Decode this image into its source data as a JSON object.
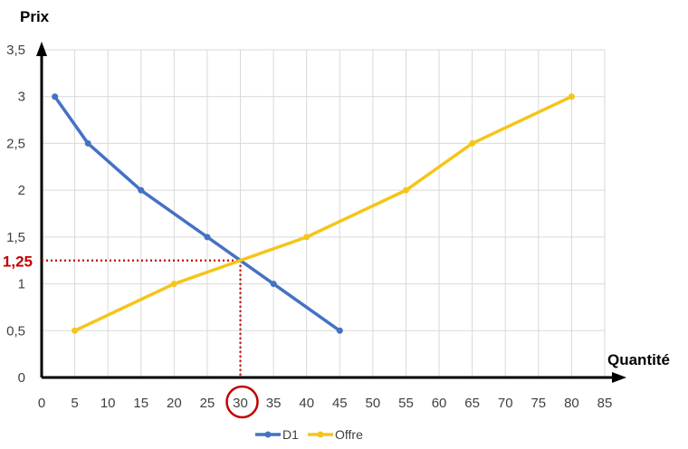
{
  "chart_data": {
    "type": "line",
    "xlabel": "Quantité",
    "ylabel": "Prix",
    "xlim": [
      0,
      85
    ],
    "ylim": [
      0,
      3.5
    ],
    "x_ticks": [
      0,
      5,
      10,
      15,
      20,
      25,
      30,
      35,
      40,
      45,
      50,
      55,
      60,
      65,
      70,
      75,
      80,
      85
    ],
    "x_tick_labels": [
      "0",
      "5",
      "10",
      "15",
      "20",
      "25",
      "30",
      "35",
      "40",
      "45",
      "50",
      "55",
      "60",
      "65",
      "70",
      "75",
      "80",
      "85"
    ],
    "y_ticks": [
      0,
      0.5,
      1,
      1.5,
      2,
      2.5,
      3,
      3.5
    ],
    "y_tick_labels": [
      "0",
      "0,5",
      "1",
      "1,5",
      "2",
      "2,5",
      "3",
      "3,5"
    ],
    "grid": true,
    "legend_position": "bottom",
    "series": [
      {
        "name": "D1",
        "color": "#4472C4",
        "points": [
          [
            2,
            3
          ],
          [
            7,
            2.5
          ],
          [
            15,
            2
          ],
          [
            25,
            1.5
          ],
          [
            35,
            1
          ],
          [
            45,
            0.5
          ]
        ]
      },
      {
        "name": "Offre",
        "color": "#F5C518",
        "points": [
          [
            5,
            0.5
          ],
          [
            20,
            1
          ],
          [
            40,
            1.5
          ],
          [
            55,
            2
          ],
          [
            65,
            2.5
          ],
          [
            80,
            3
          ]
        ]
      }
    ],
    "annotations": {
      "equilibrium": {
        "x": 30,
        "y": 1.25,
        "y_label": "1,25",
        "x_circled": "30",
        "color": "#C00000"
      }
    }
  }
}
